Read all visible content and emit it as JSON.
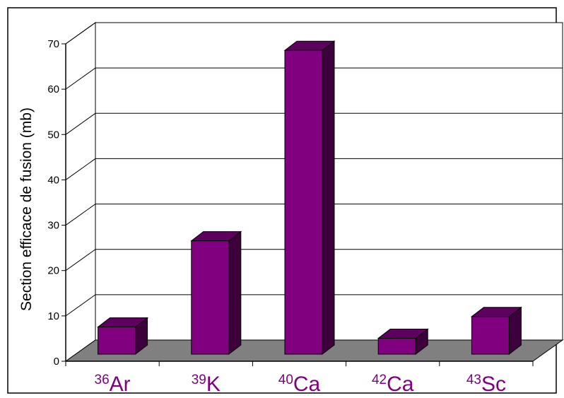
{
  "chart_data": {
    "type": "bar",
    "ylabel": "Section efficace de fusion (mb)",
    "xlabel": "",
    "ylim": [
      0,
      70
    ],
    "yticks": [
      0,
      10,
      20,
      30,
      40,
      50,
      60,
      70
    ],
    "grid": true,
    "categories": [
      {
        "mass": "36",
        "element": "Ar"
      },
      {
        "mass": "39",
        "element": "K"
      },
      {
        "mass": "40",
        "element": "Ca"
      },
      {
        "mass": "42",
        "element": "Ca"
      },
      {
        "mass": "43",
        "element": "Sc"
      }
    ],
    "values": [
      6,
      25,
      67,
      3.5,
      8.3
    ],
    "colors": {
      "bar_front": "#800080",
      "bar_top": "#5e005e",
      "bar_side": "#3d003d",
      "floor": "#808080",
      "label": "#800080"
    }
  }
}
